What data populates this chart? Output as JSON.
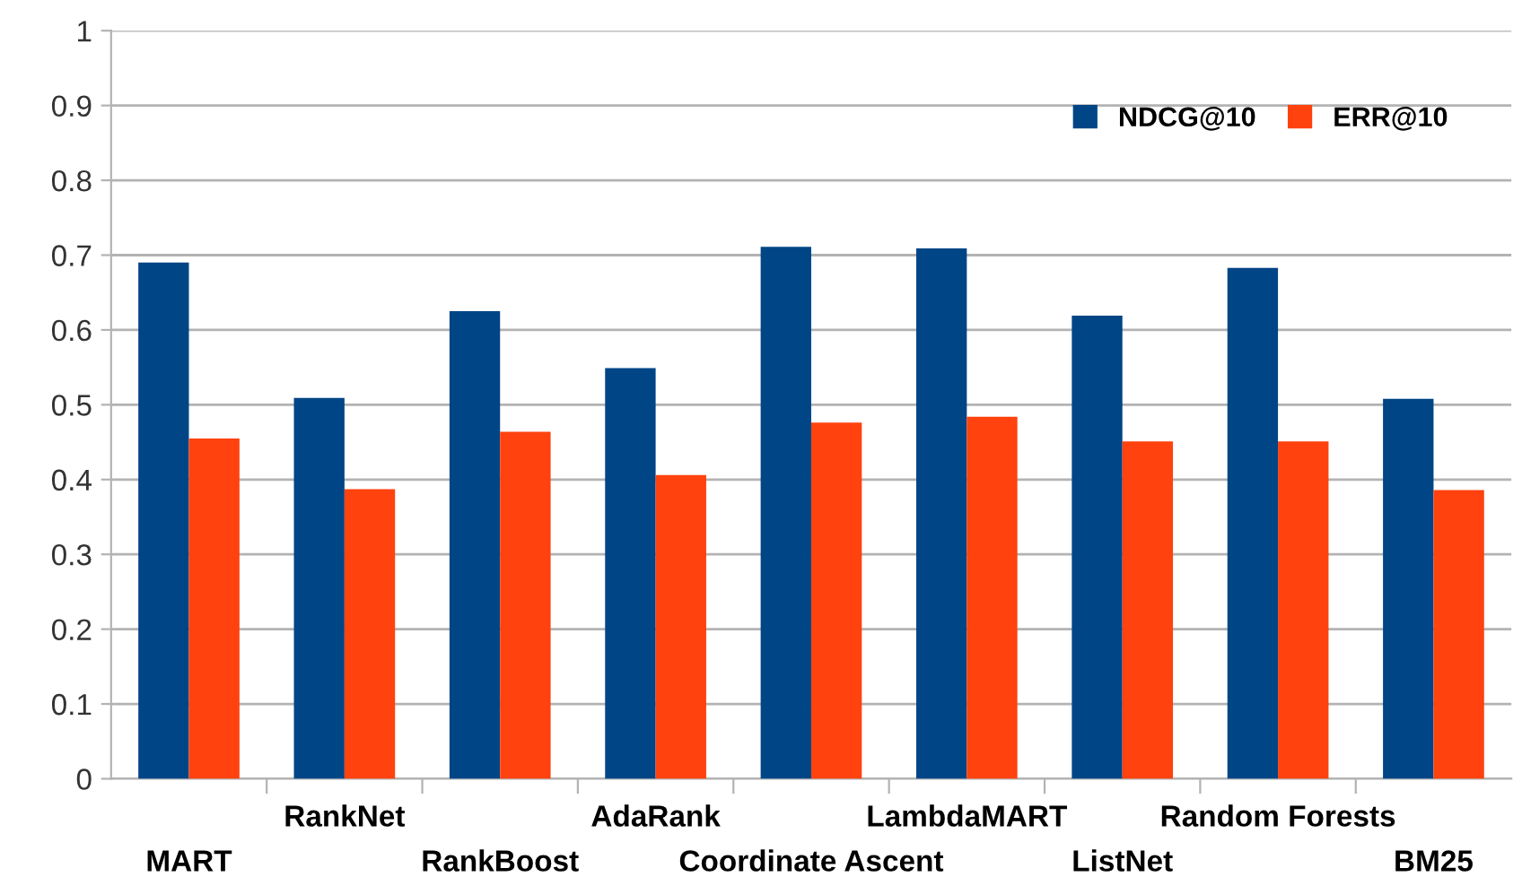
{
  "chart_data": {
    "type": "bar",
    "categories": [
      "MART",
      "RankNet",
      "RankBoost",
      "AdaRank",
      "Coordinate Ascent",
      "LambdaMART",
      "ListNet",
      "Random Forests",
      "BM25"
    ],
    "series": [
      {
        "name": "NDCG@10",
        "color": "#004586",
        "values": [
          0.69,
          0.509,
          0.625,
          0.549,
          0.711,
          0.709,
          0.619,
          0.683,
          0.508
        ]
      },
      {
        "name": "ERR@10",
        "color": "#ff420e",
        "values": [
          0.455,
          0.387,
          0.464,
          0.406,
          0.476,
          0.484,
          0.451,
          0.451,
          0.386
        ]
      }
    ],
    "ylim": [
      0,
      1
    ],
    "yticks": [
      0,
      0.1,
      0.2,
      0.3,
      0.4,
      0.5,
      0.6,
      0.7,
      0.8,
      0.9,
      1
    ],
    "grid": "y",
    "legend": "top right"
  }
}
